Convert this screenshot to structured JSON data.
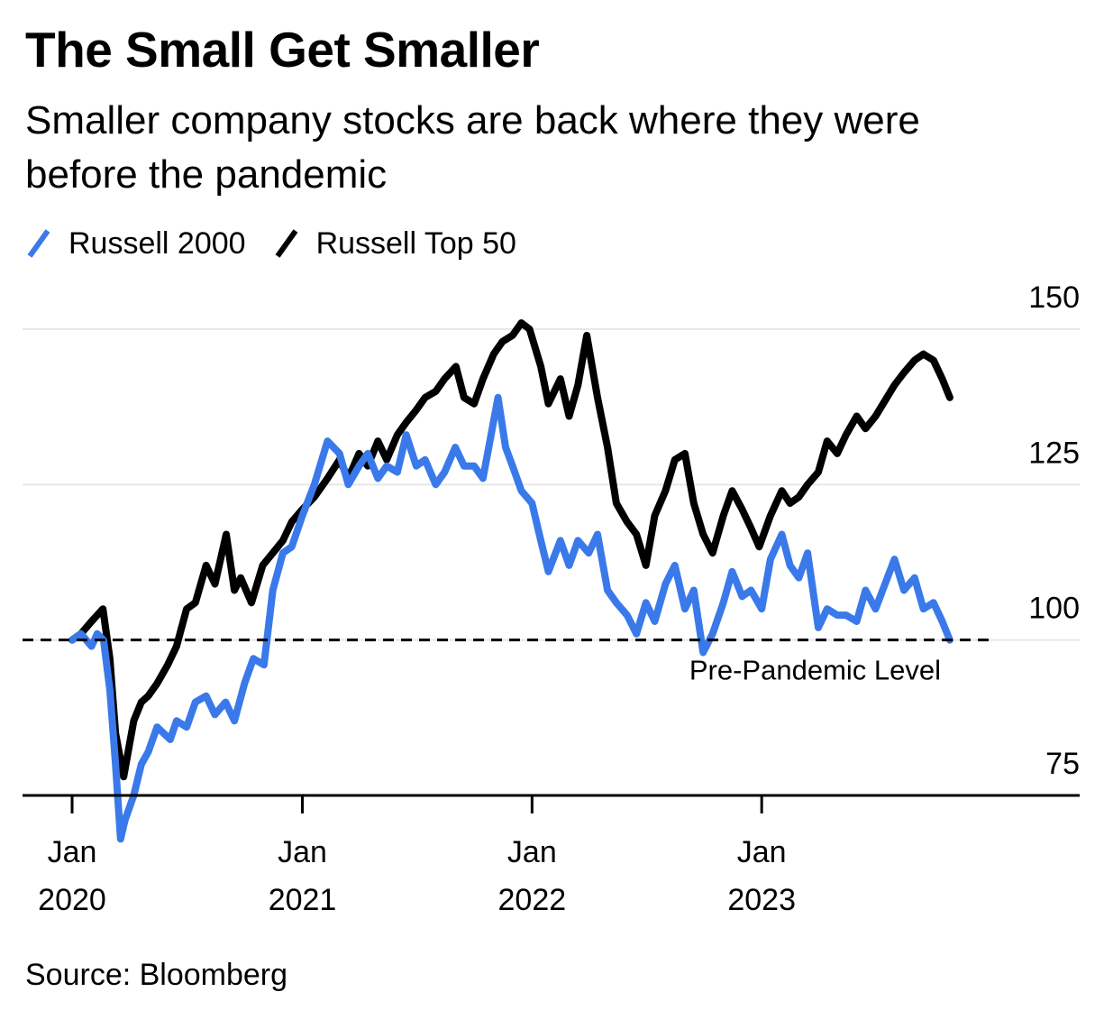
{
  "title": "The Small Get Smaller",
  "subtitle": "Smaller company stocks are back where they were before the pandemic",
  "source": "Source: Bloomberg",
  "colors": {
    "russell_2000": "#3a79ea",
    "russell_top_50": "#000000",
    "gridline": "#e6e6e6",
    "axis": "#000000"
  },
  "chart_data": {
    "type": "line",
    "x_axis_type": "date",
    "xlim": [
      "2020-01-01",
      "2024-01-01"
    ],
    "ylim": [
      75,
      150
    ],
    "y_ticks": [
      75,
      100,
      125,
      150
    ],
    "y_tick_labels": [
      "75",
      "100",
      "125",
      "150"
    ],
    "x_ticks": [
      "2020-01-01",
      "2021-01-01",
      "2022-01-01",
      "2023-01-01"
    ],
    "x_tick_labels": [
      {
        "month": "Jan",
        "year": "2020"
      },
      {
        "month": "Jan",
        "year": "2021"
      },
      {
        "month": "Jan",
        "year": "2022"
      },
      {
        "month": "Jan",
        "year": "2023"
      }
    ],
    "grid": true,
    "legend_position": "top-left",
    "reference_line": {
      "y": 100,
      "label": "Pre-Pandemic Level",
      "style": "dashed"
    },
    "series": [
      {
        "name": "Russell 2000",
        "color": "#3a79ea",
        "x": [
          "2020-01-01",
          "2020-01-15",
          "2020-02-01",
          "2020-02-10",
          "2020-02-20",
          "2020-03-01",
          "2020-03-10",
          "2020-03-18",
          "2020-03-25",
          "2020-04-08",
          "2020-04-20",
          "2020-05-01",
          "2020-05-15",
          "2020-06-05",
          "2020-06-15",
          "2020-07-01",
          "2020-07-15",
          "2020-08-01",
          "2020-08-15",
          "2020-09-01",
          "2020-09-15",
          "2020-10-01",
          "2020-10-15",
          "2020-11-01",
          "2020-11-15",
          "2020-12-01",
          "2020-12-15",
          "2021-01-01",
          "2021-01-20",
          "2021-02-10",
          "2021-03-01",
          "2021-03-15",
          "2021-04-01",
          "2021-04-15",
          "2021-05-01",
          "2021-05-15",
          "2021-06-01",
          "2021-06-15",
          "2021-07-01",
          "2021-07-15",
          "2021-08-01",
          "2021-08-15",
          "2021-09-01",
          "2021-09-15",
          "2021-10-01",
          "2021-10-15",
          "2021-11-08",
          "2021-11-20",
          "2021-12-01",
          "2021-12-15",
          "2022-01-01",
          "2022-01-15",
          "2022-01-27",
          "2022-02-15",
          "2022-03-01",
          "2022-03-15",
          "2022-04-01",
          "2022-04-15",
          "2022-05-01",
          "2022-05-15",
          "2022-06-01",
          "2022-06-16",
          "2022-07-01",
          "2022-07-15",
          "2022-08-01",
          "2022-08-16",
          "2022-09-01",
          "2022-09-15",
          "2022-09-30",
          "2022-10-15",
          "2022-11-01",
          "2022-11-15",
          "2022-12-01",
          "2022-12-15",
          "2023-01-01",
          "2023-01-15",
          "2023-02-02",
          "2023-02-15",
          "2023-03-01",
          "2023-03-15",
          "2023-04-01",
          "2023-04-15",
          "2023-05-01",
          "2023-05-15",
          "2023-06-01",
          "2023-06-15",
          "2023-07-01",
          "2023-07-31",
          "2023-08-15",
          "2023-09-01",
          "2023-09-15",
          "2023-10-01",
          "2023-10-15",
          "2023-10-27"
        ],
        "values": [
          100,
          101,
          99,
          101,
          100,
          92,
          80,
          68,
          71,
          75,
          80,
          82,
          86,
          84,
          87,
          86,
          90,
          91,
          88,
          90,
          87,
          93,
          97,
          96,
          108,
          114,
          115,
          120,
          125,
          132,
          130,
          125,
          128,
          130,
          126,
          128,
          127,
          133,
          128,
          129,
          125,
          127,
          131,
          128,
          128,
          126,
          139,
          131,
          128,
          124,
          122,
          116,
          111,
          116,
          112,
          116,
          114,
          117,
          108,
          106,
          104,
          101,
          106,
          103,
          109,
          112,
          105,
          108,
          98,
          101,
          106,
          111,
          107,
          108,
          105,
          113,
          117,
          112,
          110,
          114,
          102,
          105,
          104,
          104,
          103,
          108,
          105,
          113,
          108,
          110,
          105,
          106,
          103,
          100
        ]
      },
      {
        "name": "Russell Top 50",
        "color": "#000000",
        "x": [
          "2020-01-01",
          "2020-01-15",
          "2020-02-01",
          "2020-02-10",
          "2020-02-19",
          "2020-03-01",
          "2020-03-10",
          "2020-03-23",
          "2020-04-08",
          "2020-04-20",
          "2020-05-01",
          "2020-05-15",
          "2020-06-01",
          "2020-06-15",
          "2020-07-01",
          "2020-07-15",
          "2020-08-01",
          "2020-08-15",
          "2020-09-02",
          "2020-09-15",
          "2020-09-25",
          "2020-10-12",
          "2020-10-30",
          "2020-11-15",
          "2020-12-01",
          "2020-12-15",
          "2021-01-01",
          "2021-01-20",
          "2021-02-10",
          "2021-03-01",
          "2021-03-15",
          "2021-04-01",
          "2021-04-15",
          "2021-05-01",
          "2021-05-15",
          "2021-06-01",
          "2021-06-15",
          "2021-07-01",
          "2021-07-15",
          "2021-08-01",
          "2021-08-15",
          "2021-09-02",
          "2021-09-15",
          "2021-10-01",
          "2021-10-15",
          "2021-11-01",
          "2021-11-15",
          "2021-12-01",
          "2021-12-15",
          "2021-12-28",
          "2022-01-15",
          "2022-01-27",
          "2022-02-15",
          "2022-03-01",
          "2022-03-15",
          "2022-03-29",
          "2022-04-15",
          "2022-05-01",
          "2022-05-15",
          "2022-06-01",
          "2022-06-16",
          "2022-07-01",
          "2022-07-15",
          "2022-08-01",
          "2022-08-16",
          "2022-09-01",
          "2022-09-15",
          "2022-09-30",
          "2022-10-15",
          "2022-11-01",
          "2022-11-15",
          "2022-12-01",
          "2022-12-15",
          "2022-12-28",
          "2023-01-15",
          "2023-02-02",
          "2023-02-15",
          "2023-03-01",
          "2023-03-15",
          "2023-04-01",
          "2023-04-15",
          "2023-05-01",
          "2023-05-15",
          "2023-06-01",
          "2023-06-15",
          "2023-07-01",
          "2023-07-31",
          "2023-08-15",
          "2023-09-01",
          "2023-09-15",
          "2023-10-01",
          "2023-10-15",
          "2023-10-27"
        ],
        "values": [
          100,
          101,
          103,
          104,
          105,
          97,
          85,
          78,
          87,
          90,
          91,
          93,
          96,
          99,
          105,
          106,
          112,
          109,
          117,
          108,
          110,
          106,
          112,
          114,
          116,
          119,
          121,
          123,
          126,
          129,
          126,
          130,
          128,
          132,
          129,
          133,
          135,
          137,
          139,
          140,
          142,
          144,
          139,
          138,
          142,
          146,
          148,
          149,
          151,
          150,
          144,
          138,
          142,
          136,
          141,
          149,
          139,
          131,
          122,
          119,
          117,
          112,
          120,
          124,
          129,
          130,
          122,
          117,
          114,
          120,
          124,
          121,
          118,
          115,
          120,
          124,
          122,
          123,
          125,
          127,
          132,
          130,
          133,
          136,
          134,
          136,
          141,
          143,
          145,
          146,
          145,
          142,
          139
        ]
      }
    ]
  }
}
